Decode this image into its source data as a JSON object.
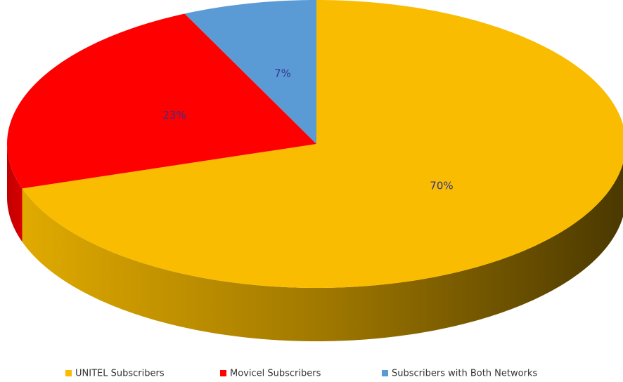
{
  "chart_data": {
    "type": "pie",
    "categories": [
      "UNITEL Subscribers",
      "Movicel Subscribers",
      "Subscribers with Both Networks"
    ],
    "values": [
      70,
      23,
      7
    ],
    "value_labels": [
      "70%",
      "23%",
      "7%"
    ],
    "colors": [
      "#f9bc00",
      "#ff0000",
      "#5b9bd5"
    ],
    "legend": "bottom"
  }
}
